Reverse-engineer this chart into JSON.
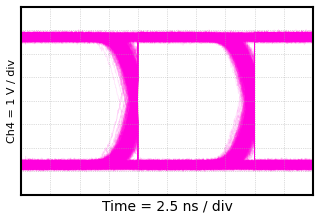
{
  "background_color": "#ffffff",
  "plot_bg_color": "#ffffff",
  "signal_color": "#ff00dd",
  "grid_color": "#aaaaaa",
  "border_color": "#000000",
  "ylabel": "Ch4 = 1 V / div",
  "xlabel": "Time = 2.5 ns / div",
  "xlabel_fontsize": 10,
  "ylabel_fontsize": 8,
  "high_level": 0.68,
  "low_level": -0.68,
  "noise_amplitude": 0.018,
  "transition_steepness": 8.0,
  "jitter_sigma": 0.04,
  "n_traces": 3000,
  "bit_period": 1.0,
  "n_display_periods": 2.5,
  "xlim": [
    0,
    2.5
  ],
  "ylim": [
    -1.0,
    1.0
  ],
  "grid_nx": 10,
  "grid_ny": 8,
  "line_alpha": 0.12,
  "line_width": 0.5
}
